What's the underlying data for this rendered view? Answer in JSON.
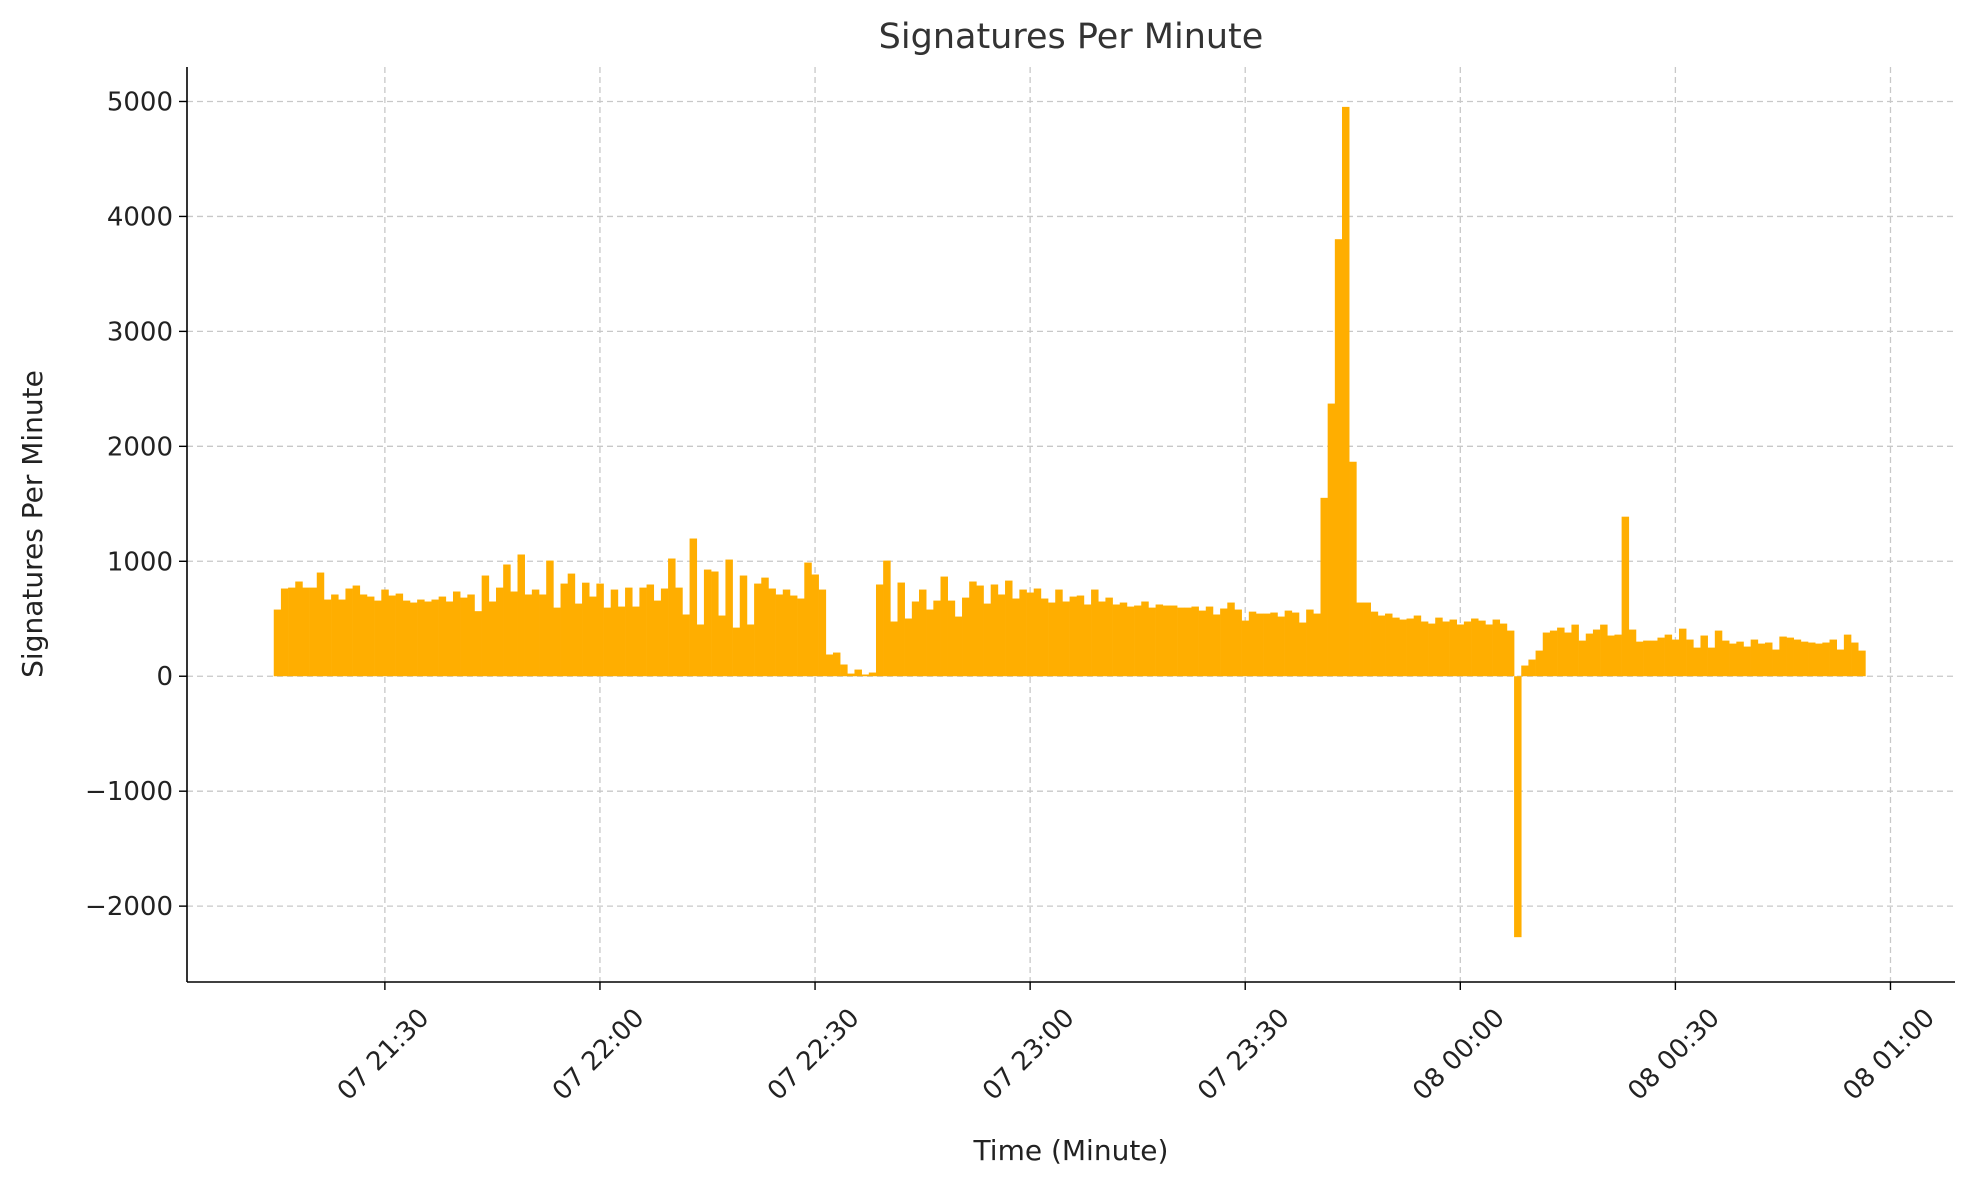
{
  "chart_data": {
    "type": "bar",
    "title": "Signatures Per Minute",
    "xlabel": "Time (Minute)",
    "ylabel": "Signatures Per Minute",
    "x_start": "07 21:15",
    "x_interval_minutes": 1,
    "x_ticks": [
      "07 21:30",
      "07 22:00",
      "07 22:30",
      "07 23:00",
      "07 23:30",
      "08 00:00",
      "08 00:30",
      "08 01:00"
    ],
    "y_ticks": [
      -2000,
      -1000,
      0,
      1000,
      2000,
      3000,
      4000,
      5000
    ],
    "y_tick_labels": [
      "−2000",
      "−1000",
      "0",
      "1000",
      "2000",
      "3000",
      "4000",
      "5000"
    ],
    "ylim": [
      -2660,
      5300
    ],
    "xlim_minutes_from_start": [
      -12.6,
      234
    ],
    "grid": true,
    "bar_color": "#FFAE00",
    "values": [
      580,
      763,
      771,
      824,
      771,
      771,
      902,
      667,
      711,
      667,
      763,
      789,
      711,
      693,
      658,
      754,
      702,
      719,
      658,
      641,
      667,
      650,
      667,
      693,
      650,
      737,
      684,
      711,
      566,
      876,
      650,
      771,
      972,
      737,
      1059,
      711,
      754,
      711,
      1006,
      597,
      806,
      893,
      632,
      814,
      693,
      806,
      597,
      754,
      606,
      771,
      606,
      771,
      798,
      658,
      763,
      1024,
      771,
      537,
      1198,
      450,
      928,
      911,
      528,
      1015,
      423,
      876,
      450,
      806,
      858,
      763,
      711,
      754,
      702,
      676,
      989,
      885,
      754,
      189,
      206,
      102,
      23,
      58,
      15,
      32,
      798,
      1006,
      476,
      815,
      502,
      650,
      754,
      580,
      658,
      867,
      658,
      519,
      684,
      824,
      789,
      632,
      798,
      711,
      832,
      676,
      754,
      728,
      763,
      676,
      641,
      754,
      650,
      693,
      702,
      624,
      754,
      650,
      684,
      624,
      641,
      606,
      615,
      650,
      597,
      624,
      615,
      615,
      597,
      597,
      606,
      571,
      606,
      537,
      589,
      641,
      580,
      484,
      562,
      545,
      545,
      554,
      519,
      571,
      554,
      467,
      580,
      545,
      1552,
      2372,
      3802,
      4953,
      1866,
      641,
      641,
      562,
      528,
      545,
      510,
      493,
      502,
      528,
      476,
      458,
      510,
      476,
      493,
      450,
      476,
      502,
      484,
      450,
      493,
      458,
      397,
      -2270,
      93,
      145,
      223,
      380,
      397,
      423,
      380,
      449,
      310,
      371,
      406,
      449,
      354,
      362,
      1388,
      406,
      301,
      310,
      310,
      336,
      362,
      319,
      414,
      319,
      249,
      354,
      249,
      397,
      310,
      284,
      301,
      258,
      319,
      284,
      293,
      232,
      345,
      336,
      319,
      301,
      293,
      284,
      293,
      319,
      232,
      362,
      293,
      223
    ]
  }
}
